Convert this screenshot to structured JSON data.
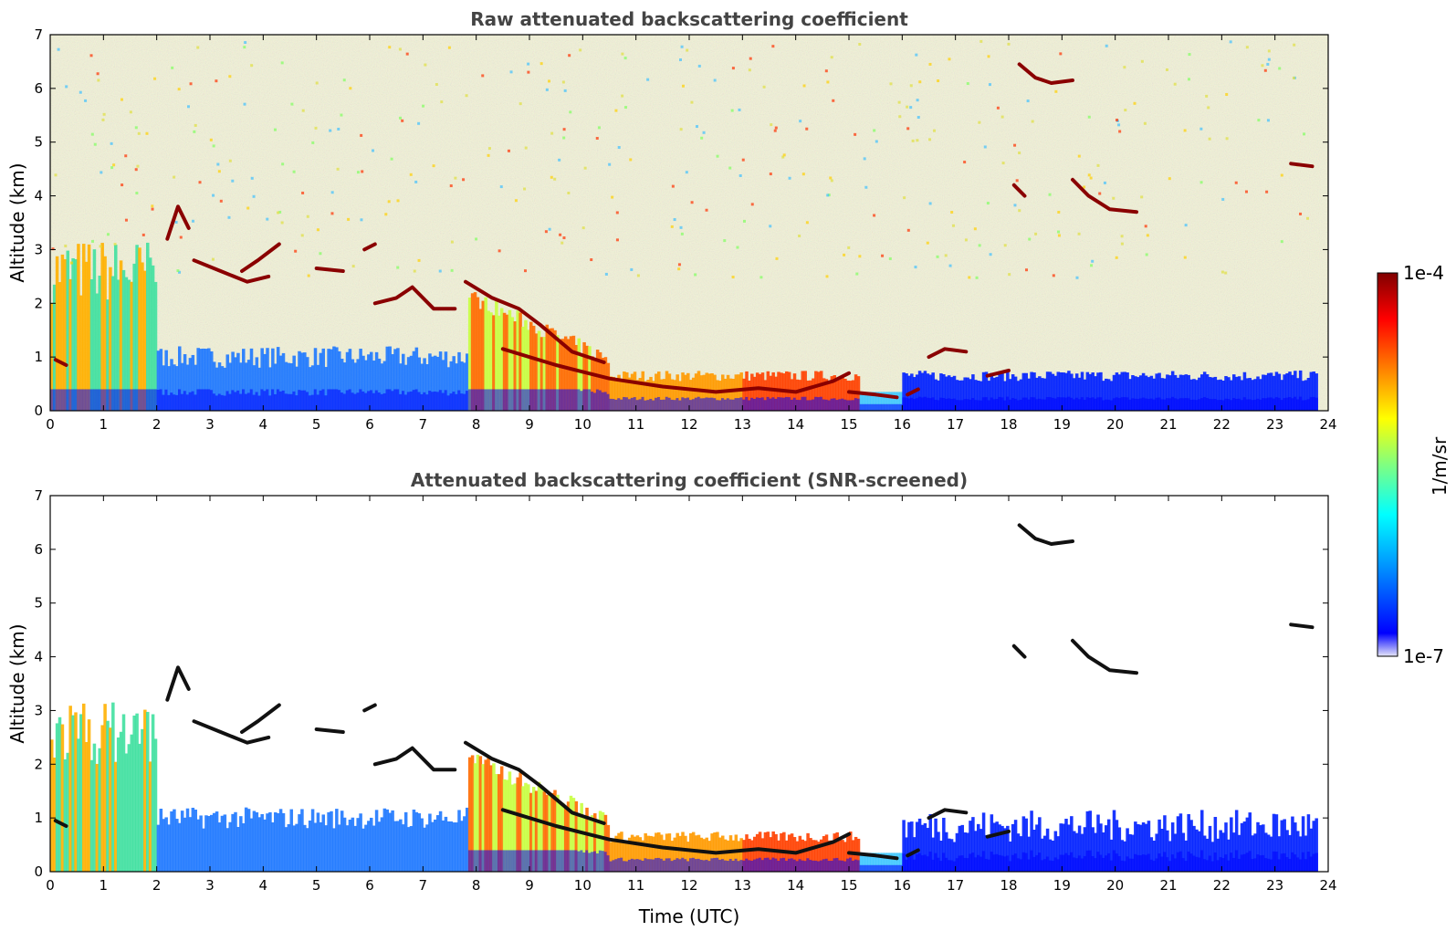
{
  "chart_data": [
    {
      "type": "heatmap",
      "title": "Raw attenuated backscattering coefficient",
      "xlabel": "",
      "ylabel": "Altitude (km)",
      "xlim": [
        0,
        24
      ],
      "ylim": [
        0,
        7
      ],
      "xticks": [
        "0",
        "1",
        "2",
        "3",
        "4",
        "5",
        "6",
        "7",
        "8",
        "9",
        "10",
        "11",
        "12",
        "13",
        "14",
        "15",
        "16",
        "17",
        "18",
        "19",
        "20",
        "21",
        "22",
        "23",
        "24"
      ],
      "yticks": [
        "0",
        "1",
        "2",
        "3",
        "4",
        "5",
        "6",
        "7"
      ],
      "screened": false
    },
    {
      "type": "heatmap",
      "title": "Attenuated backscattering coefficient (SNR-screened)",
      "xlabel": "Time (UTC)",
      "ylabel": "Altitude (km)",
      "xlim": [
        0,
        24
      ],
      "ylim": [
        0,
        7
      ],
      "xticks": [
        "0",
        "1",
        "2",
        "3",
        "4",
        "5",
        "6",
        "7",
        "8",
        "9",
        "10",
        "11",
        "12",
        "13",
        "14",
        "15",
        "16",
        "17",
        "18",
        "19",
        "20",
        "21",
        "22",
        "23",
        "24"
      ],
      "yticks": [
        "0",
        "1",
        "2",
        "3",
        "4",
        "5",
        "6",
        "7"
      ],
      "screened": true
    }
  ],
  "colorbar": {
    "label": "1/m/sr",
    "max_label": "1e-4",
    "min_label": "1e-7",
    "colormap": "jet",
    "colors": [
      "#e6e6f8",
      "#0000ff",
      "#00a0ff",
      "#00ffff",
      "#80ff80",
      "#ffff00",
      "#ff8000",
      "#ff0000",
      "#800000"
    ]
  },
  "cloud_layers": [
    {
      "points": [
        [
          0.1,
          0.95
        ],
        [
          0.3,
          0.85
        ]
      ]
    },
    {
      "points": [
        [
          2.2,
          3.2
        ],
        [
          2.4,
          3.8
        ],
        [
          2.6,
          3.4
        ]
      ]
    },
    {
      "points": [
        [
          2.7,
          2.8
        ],
        [
          3.2,
          2.6
        ],
        [
          3.7,
          2.4
        ],
        [
          4.1,
          2.5
        ]
      ]
    },
    {
      "points": [
        [
          3.6,
          2.6
        ],
        [
          3.9,
          2.8
        ],
        [
          4.3,
          3.1
        ]
      ]
    },
    {
      "points": [
        [
          5.0,
          2.65
        ],
        [
          5.5,
          2.6
        ]
      ]
    },
    {
      "points": [
        [
          5.9,
          3.0
        ],
        [
          6.1,
          3.1
        ]
      ]
    },
    {
      "points": [
        [
          6.1,
          2.0
        ],
        [
          6.5,
          2.1
        ],
        [
          6.8,
          2.3
        ],
        [
          7.2,
          1.9
        ],
        [
          7.6,
          1.9
        ]
      ]
    },
    {
      "points": [
        [
          7.8,
          2.4
        ],
        [
          8.3,
          2.1
        ],
        [
          8.8,
          1.9
        ],
        [
          9.2,
          1.6
        ],
        [
          9.8,
          1.1
        ],
        [
          10.4,
          0.9
        ]
      ]
    },
    {
      "points": [
        [
          8.5,
          1.15
        ],
        [
          9.5,
          0.85
        ],
        [
          10.5,
          0.6
        ],
        [
          11.5,
          0.45
        ],
        [
          12.5,
          0.35
        ],
        [
          13.3,
          0.42
        ],
        [
          14.0,
          0.35
        ],
        [
          14.7,
          0.55
        ],
        [
          15.0,
          0.7
        ]
      ]
    },
    {
      "points": [
        [
          15.0,
          0.35
        ],
        [
          15.5,
          0.3
        ],
        [
          15.9,
          0.25
        ]
      ]
    },
    {
      "points": [
        [
          16.1,
          0.3
        ],
        [
          16.3,
          0.4
        ]
      ]
    },
    {
      "points": [
        [
          16.5,
          1.0
        ],
        [
          16.8,
          1.15
        ],
        [
          17.2,
          1.1
        ]
      ]
    },
    {
      "points": [
        [
          17.6,
          0.65
        ],
        [
          18.0,
          0.75
        ]
      ]
    },
    {
      "points": [
        [
          18.1,
          4.2
        ],
        [
          18.3,
          4.0
        ]
      ]
    },
    {
      "points": [
        [
          19.2,
          4.3
        ],
        [
          19.5,
          4.0
        ],
        [
          19.9,
          3.75
        ],
        [
          20.4,
          3.7
        ]
      ]
    },
    {
      "points": [
        [
          18.2,
          6.45
        ],
        [
          18.5,
          6.2
        ],
        [
          18.8,
          6.1
        ],
        [
          19.2,
          6.15
        ]
      ]
    },
    {
      "points": [
        [
          23.3,
          4.6
        ],
        [
          23.7,
          4.55
        ]
      ]
    }
  ]
}
